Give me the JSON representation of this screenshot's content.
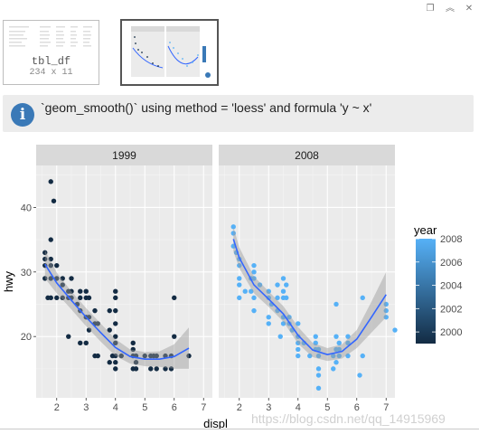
{
  "window": {
    "restore_icon": "restore-icon",
    "collapse_icon": "collapse-up-icon",
    "close_icon": "close-icon"
  },
  "thumbnails": [
    {
      "title": "tbl_df",
      "dims": "234 x 11"
    },
    {
      "title": ""
    }
  ],
  "message": {
    "icon": "info-icon",
    "icon_glyph": "i",
    "text": "`geom_smooth()` using method = 'loess' and formula 'y ~ x'"
  },
  "watermark": "https://blog.csdn.net/qq_14915969",
  "chart_data": {
    "type": "scatter",
    "xlabel": "displ",
    "ylabel": "hwy",
    "xlim": [
      1.3,
      7.3
    ],
    "ylim": [
      10.5,
      46.5
    ],
    "x_ticks": [
      2,
      3,
      4,
      5,
      6,
      7
    ],
    "y_ticks": [
      20,
      30,
      40
    ],
    "facets": [
      {
        "label": "1999",
        "color_value": 1999,
        "points": [
          [
            1.8,
            44
          ],
          [
            1.9,
            41
          ],
          [
            1.8,
            35
          ],
          [
            1.6,
            33
          ],
          [
            1.6,
            32
          ],
          [
            1.8,
            32
          ],
          [
            1.6,
            31
          ],
          [
            1.8,
            31
          ],
          [
            2.0,
            31
          ],
          [
            1.6,
            29
          ],
          [
            1.8,
            29
          ],
          [
            2.0,
            29
          ],
          [
            2.2,
            29
          ],
          [
            2.5,
            29
          ],
          [
            2.2,
            28
          ],
          [
            2.4,
            27
          ],
          [
            2.5,
            27
          ],
          [
            2.8,
            27
          ],
          [
            3.0,
            27
          ],
          [
            1.7,
            26
          ],
          [
            1.8,
            26
          ],
          [
            2.0,
            26
          ],
          [
            2.2,
            26
          ],
          [
            2.4,
            26
          ],
          [
            2.5,
            26
          ],
          [
            2.8,
            26
          ],
          [
            3.0,
            26
          ],
          [
            3.1,
            26
          ],
          [
            4.0,
            27
          ],
          [
            4.0,
            26
          ],
          [
            6.0,
            26
          ],
          [
            2.7,
            25
          ],
          [
            2.8,
            24
          ],
          [
            3.3,
            24
          ],
          [
            3.8,
            24
          ],
          [
            4.0,
            24
          ],
          [
            3.0,
            23
          ],
          [
            3.1,
            23
          ],
          [
            3.3,
            22
          ],
          [
            3.4,
            22
          ],
          [
            4.0,
            22
          ],
          [
            3.1,
            21
          ],
          [
            3.8,
            21
          ],
          [
            2.4,
            20
          ],
          [
            4.0,
            20
          ],
          [
            2.8,
            19
          ],
          [
            3.0,
            19
          ],
          [
            4.0,
            19
          ],
          [
            4.6,
            19
          ],
          [
            4.6,
            18
          ],
          [
            6.0,
            20
          ],
          [
            4.7,
            17
          ],
          [
            3.3,
            17
          ],
          [
            3.4,
            17
          ],
          [
            3.9,
            17
          ],
          [
            4.0,
            17
          ],
          [
            4.2,
            17
          ],
          [
            4.6,
            17
          ],
          [
            5.2,
            17
          ],
          [
            5.3,
            17
          ],
          [
            5.4,
            17
          ],
          [
            5.7,
            17
          ],
          [
            3.8,
            16
          ],
          [
            4.0,
            16
          ],
          [
            4.7,
            16
          ],
          [
            4.0,
            15
          ],
          [
            4.6,
            15
          ],
          [
            4.7,
            15
          ],
          [
            5.2,
            15
          ],
          [
            5.4,
            15
          ],
          [
            5.7,
            15
          ],
          [
            5.9,
            15
          ],
          [
            6.5,
            17
          ],
          [
            5.0,
            17
          ],
          [
            5.9,
            17
          ]
        ],
        "smooth": [
          [
            1.6,
            31.2
          ],
          [
            2.0,
            28.3
          ],
          [
            2.5,
            25.6
          ],
          [
            3.0,
            23.0
          ],
          [
            3.5,
            20.6
          ],
          [
            4.0,
            18.3
          ],
          [
            4.5,
            16.9
          ],
          [
            5.0,
            16.5
          ],
          [
            5.5,
            16.5
          ],
          [
            6.0,
            16.9
          ],
          [
            6.5,
            18.2
          ]
        ],
        "band_upper": [
          [
            1.6,
            33.4
          ],
          [
            2.0,
            29.9
          ],
          [
            2.5,
            27.0
          ],
          [
            3.0,
            24.4
          ],
          [
            3.5,
            22.0
          ],
          [
            4.0,
            19.6
          ],
          [
            4.5,
            18.0
          ],
          [
            5.0,
            17.6
          ],
          [
            5.5,
            17.7
          ],
          [
            6.0,
            18.8
          ],
          [
            6.5,
            21.4
          ]
        ],
        "band_lower": [
          [
            1.6,
            29.0
          ],
          [
            2.0,
            26.7
          ],
          [
            2.5,
            24.2
          ],
          [
            3.0,
            21.6
          ],
          [
            3.5,
            19.2
          ],
          [
            4.0,
            17.0
          ],
          [
            4.5,
            15.8
          ],
          [
            5.0,
            15.4
          ],
          [
            5.5,
            15.3
          ],
          [
            6.0,
            15.0
          ],
          [
            6.5,
            15.0
          ]
        ]
      },
      {
        "label": "2008",
        "color_value": 2008,
        "points": [
          [
            1.8,
            37
          ],
          [
            1.8,
            36
          ],
          [
            1.8,
            34
          ],
          [
            1.9,
            33
          ],
          [
            2.0,
            32
          ],
          [
            2.0,
            31
          ],
          [
            2.0,
            29
          ],
          [
            2.0,
            28
          ],
          [
            2.5,
            31
          ],
          [
            2.5,
            30
          ],
          [
            2.7,
            28
          ],
          [
            2.4,
            29
          ],
          [
            2.5,
            29
          ],
          [
            2.2,
            27
          ],
          [
            2.4,
            27
          ],
          [
            2.0,
            26
          ],
          [
            2.5,
            26
          ],
          [
            2.5,
            24
          ],
          [
            3.0,
            27
          ],
          [
            3.5,
            29
          ],
          [
            3.6,
            28
          ],
          [
            3.3,
            28
          ],
          [
            3.5,
            27
          ],
          [
            3.5,
            26
          ],
          [
            3.6,
            26
          ],
          [
            3.0,
            26
          ],
          [
            3.3,
            26
          ],
          [
            3.1,
            25
          ],
          [
            3.3,
            24
          ],
          [
            3.0,
            23
          ],
          [
            3.5,
            23
          ],
          [
            3.0,
            22
          ],
          [
            3.5,
            22
          ],
          [
            3.7,
            23
          ],
          [
            3.7,
            22
          ],
          [
            3.8,
            21
          ],
          [
            3.4,
            20
          ],
          [
            4.0,
            22
          ],
          [
            4.0,
            20
          ],
          [
            4.0,
            19
          ],
          [
            4.2,
            19
          ],
          [
            4.6,
            19
          ],
          [
            4.6,
            20
          ],
          [
            4.0,
            18
          ],
          [
            4.6,
            18
          ],
          [
            4.7,
            18
          ],
          [
            4.0,
            17
          ],
          [
            4.4,
            17
          ],
          [
            4.7,
            17
          ],
          [
            5.2,
            17
          ],
          [
            5.3,
            18
          ],
          [
            5.4,
            18
          ],
          [
            5.7,
            17
          ],
          [
            4.7,
            15
          ],
          [
            5.2,
            15
          ],
          [
            5.3,
            16
          ],
          [
            5.4,
            17
          ],
          [
            5.7,
            19
          ],
          [
            5.7,
            20
          ],
          [
            5.3,
            20
          ],
          [
            5.4,
            19
          ],
          [
            4.7,
            14
          ],
          [
            4.7,
            12
          ],
          [
            5.3,
            25
          ],
          [
            6.2,
            26
          ],
          [
            6.1,
            14
          ],
          [
            6.2,
            17
          ],
          [
            7.0,
            24
          ],
          [
            7.0,
            25
          ],
          [
            7.0,
            23
          ],
          [
            7.3,
            21
          ]
        ],
        "smooth": [
          [
            1.8,
            35.1
          ],
          [
            2.0,
            32.2
          ],
          [
            2.5,
            28.0
          ],
          [
            3.0,
            25.8
          ],
          [
            3.5,
            23.5
          ],
          [
            4.0,
            20.2
          ],
          [
            4.5,
            17.9
          ],
          [
            5.0,
            17.2
          ],
          [
            5.5,
            17.7
          ],
          [
            6.0,
            19.6
          ],
          [
            6.5,
            23.0
          ],
          [
            7.0,
            26.5
          ]
        ],
        "band_upper": [
          [
            1.8,
            37.0
          ],
          [
            2.0,
            33.8
          ],
          [
            2.5,
            29.3
          ],
          [
            3.0,
            27.0
          ],
          [
            3.5,
            24.7
          ],
          [
            4.0,
            21.5
          ],
          [
            4.5,
            19.0
          ],
          [
            5.0,
            18.2
          ],
          [
            5.5,
            18.8
          ],
          [
            6.0,
            21.0
          ],
          [
            6.5,
            25.4
          ],
          [
            7.0,
            30.0
          ]
        ],
        "band_lower": [
          [
            1.8,
            33.2
          ],
          [
            2.0,
            30.6
          ],
          [
            2.5,
            26.7
          ],
          [
            3.0,
            24.6
          ],
          [
            3.5,
            22.3
          ],
          [
            4.0,
            18.9
          ],
          [
            4.5,
            16.8
          ],
          [
            5.0,
            16.2
          ],
          [
            5.5,
            16.6
          ],
          [
            6.0,
            18.2
          ],
          [
            6.5,
            20.6
          ],
          [
            7.0,
            23.0
          ]
        ]
      }
    ],
    "legend": {
      "title": "year",
      "ticks": [
        2000,
        2002,
        2004,
        2006,
        2008
      ],
      "range": [
        1999,
        2008
      ],
      "color_low": "#132b43",
      "color_high": "#56b1f7",
      "position": "right"
    },
    "colors": {
      "panel_bg": "#ebebeb",
      "grid": "#ffffff",
      "strip_bg": "#d9d9d9",
      "smooth_line": "#3366ff",
      "band": "#999999"
    },
    "grid": true
  }
}
